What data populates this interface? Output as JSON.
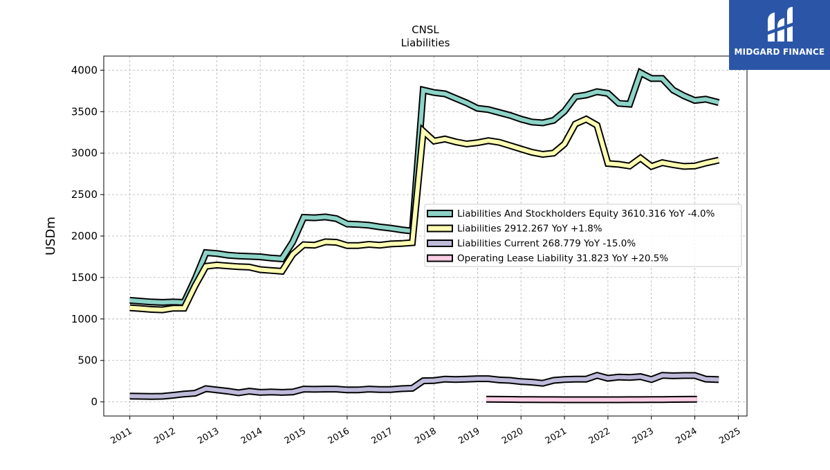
{
  "chart_data": {
    "type": "line",
    "title": "CNSL",
    "subtitle": "Liabilities",
    "xlabel": "",
    "ylabel": "USDm",
    "xlim": [
      2010.4,
      2025.2
    ],
    "ylim": [
      -170,
      4170
    ],
    "x_ticks": [
      "2011",
      "2012",
      "2013",
      "2014",
      "2015",
      "2016",
      "2017",
      "2018",
      "2019",
      "2020",
      "2021",
      "2022",
      "2023",
      "2024",
      "2025"
    ],
    "y_ticks": [
      "0",
      "500",
      "1000",
      "1500",
      "2000",
      "2500",
      "3000",
      "3500",
      "4000"
    ],
    "grid": true,
    "legend_position": "center-right",
    "series": [
      {
        "name": "Liabilities And Stockholders Equity",
        "legend_label": "Liabilities And Stockholders Equity  3610.316 YoY -4.0%",
        "color": "#8dd3c7",
        "x": [
          2011.0,
          2011.25,
          2011.5,
          2011.75,
          2012.0,
          2012.25,
          2012.5,
          2012.75,
          2013.0,
          2013.25,
          2013.5,
          2013.75,
          2014.0,
          2014.25,
          2014.5,
          2014.75,
          2015.0,
          2015.25,
          2015.5,
          2015.75,
          2016.0,
          2016.25,
          2016.5,
          2016.75,
          2017.0,
          2017.25,
          2017.5,
          2017.75,
          2018.0,
          2018.25,
          2018.5,
          2018.75,
          2019.0,
          2019.25,
          2019.5,
          2019.75,
          2020.0,
          2020.25,
          2020.5,
          2020.75,
          2021.0,
          2021.25,
          2021.5,
          2021.75,
          2022.0,
          2022.25,
          2022.5,
          2022.75,
          2023.0,
          2023.25,
          2023.5,
          2023.75,
          2024.0,
          2024.25,
          2024.55
        ],
        "values": [
          1225,
          1215,
          1205,
          1200,
          1205,
          1200,
          1480,
          1800,
          1790,
          1770,
          1760,
          1755,
          1750,
          1735,
          1725,
          1930,
          2225,
          2220,
          2230,
          2210,
          2145,
          2140,
          2130,
          2110,
          2095,
          2075,
          2060,
          3760,
          3730,
          3715,
          3660,
          3605,
          3540,
          3525,
          3490,
          3455,
          3410,
          3375,
          3365,
          3395,
          3505,
          3680,
          3700,
          3740,
          3720,
          3600,
          3590,
          3970,
          3900,
          3900,
          3760,
          3690,
          3635,
          3650,
          3610
        ]
      },
      {
        "name": "Liabilities",
        "legend_label": "Liabilities  2912.267 YoY +1.8%",
        "color": "#ffffb3",
        "x": [
          2011.0,
          2011.25,
          2011.5,
          2011.75,
          2012.0,
          2012.25,
          2012.5,
          2012.75,
          2013.0,
          2013.25,
          2013.5,
          2013.75,
          2014.0,
          2014.25,
          2014.5,
          2014.75,
          2015.0,
          2015.25,
          2015.5,
          2015.75,
          2016.0,
          2016.25,
          2016.5,
          2016.75,
          2017.0,
          2017.25,
          2017.5,
          2017.75,
          2018.0,
          2018.25,
          2018.5,
          2018.75,
          2019.0,
          2019.25,
          2019.5,
          2019.75,
          2020.0,
          2020.25,
          2020.5,
          2020.75,
          2021.0,
          2021.25,
          2021.5,
          2021.75,
          2022.0,
          2022.25,
          2022.5,
          2022.75,
          2023.0,
          2023.25,
          2023.5,
          2023.75,
          2024.0,
          2024.25,
          2024.55
        ],
        "values": [
          1135,
          1125,
          1115,
          1110,
          1130,
          1130,
          1400,
          1635,
          1650,
          1640,
          1630,
          1625,
          1595,
          1585,
          1575,
          1780,
          1895,
          1890,
          1930,
          1925,
          1885,
          1885,
          1900,
          1890,
          1905,
          1910,
          1920,
          3265,
          3145,
          3170,
          3135,
          3110,
          3125,
          3150,
          3130,
          3090,
          3050,
          3010,
          2985,
          3000,
          3110,
          3350,
          3410,
          3335,
          2875,
          2865,
          2845,
          2940,
          2840,
          2885,
          2860,
          2840,
          2845,
          2880,
          2915
        ]
      },
      {
        "name": "Liabilities Current",
        "legend_label": "Liabilities Current  268.779 YoY -15.0%",
        "color": "#bebada",
        "x": [
          2011.0,
          2011.25,
          2011.5,
          2011.75,
          2012.0,
          2012.25,
          2012.5,
          2012.75,
          2013.0,
          2013.25,
          2013.5,
          2013.75,
          2014.0,
          2014.25,
          2014.5,
          2014.75,
          2015.0,
          2015.25,
          2015.5,
          2015.75,
          2016.0,
          2016.25,
          2016.5,
          2016.75,
          2017.0,
          2017.25,
          2017.5,
          2017.75,
          2018.0,
          2018.25,
          2018.5,
          2018.75,
          2019.0,
          2019.25,
          2019.5,
          2019.75,
          2020.0,
          2020.25,
          2020.5,
          2020.75,
          2021.0,
          2021.25,
          2021.5,
          2021.75,
          2022.0,
          2022.25,
          2022.5,
          2022.75,
          2023.0,
          2023.25,
          2023.5,
          2023.75,
          2024.0,
          2024.25,
          2024.55
        ],
        "values": [
          70,
          68,
          66,
          68,
          80,
          95,
          105,
          160,
          145,
          130,
          110,
          130,
          115,
          120,
          115,
          120,
          155,
          152,
          155,
          155,
          145,
          145,
          155,
          150,
          150,
          160,
          165,
          255,
          258,
          275,
          270,
          275,
          280,
          280,
          265,
          260,
          245,
          238,
          225,
          260,
          270,
          275,
          275,
          320,
          285,
          300,
          295,
          305,
          270,
          320,
          315,
          318,
          318,
          275,
          269
        ]
      },
      {
        "name": "Operating Lease Liability",
        "legend_label": "Operating Lease Liability  31.823 YoY +20.5%",
        "color": "#fccde5",
        "x": [
          2019.2,
          2019.5,
          2019.75,
          2020.0,
          2020.25,
          2020.5,
          2020.75,
          2021.0,
          2021.25,
          2021.5,
          2021.75,
          2022.0,
          2022.25,
          2022.5,
          2022.75,
          2023.0,
          2023.25,
          2023.5,
          2023.75,
          2024.05
        ],
        "values": [
          32,
          31,
          30,
          29,
          28,
          27,
          27,
          26,
          26,
          26,
          26,
          26,
          26,
          27,
          27,
          28,
          29,
          30,
          31,
          32
        ]
      }
    ]
  },
  "logo": {
    "text": "MIDGARD FINANCE",
    "bg_color": "#2b56a8"
  }
}
